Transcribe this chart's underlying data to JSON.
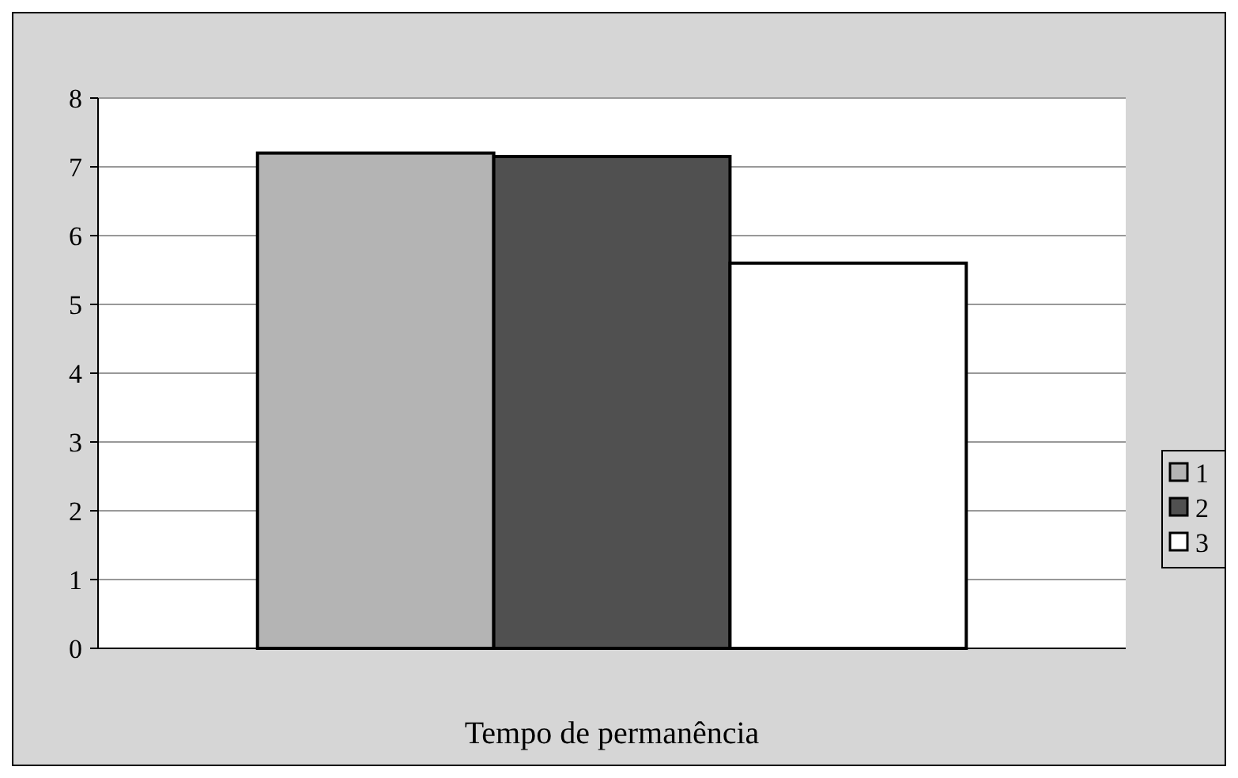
{
  "chart_data": {
    "type": "bar",
    "xlabel": "Tempo de permanência",
    "categories": [
      null
    ],
    "series": [
      {
        "name": "1",
        "color": "#b4b4b4",
        "values": [
          7.2
        ]
      },
      {
        "name": "2",
        "color": "#505050",
        "values": [
          7.15
        ]
      },
      {
        "name": "3",
        "color": "#ffffff",
        "values": [
          5.6
        ]
      }
    ],
    "ylim": [
      0,
      8
    ],
    "yticks": [
      0,
      1,
      2,
      3,
      4,
      5,
      6,
      7,
      8
    ],
    "grid": "y",
    "legend": "right"
  }
}
